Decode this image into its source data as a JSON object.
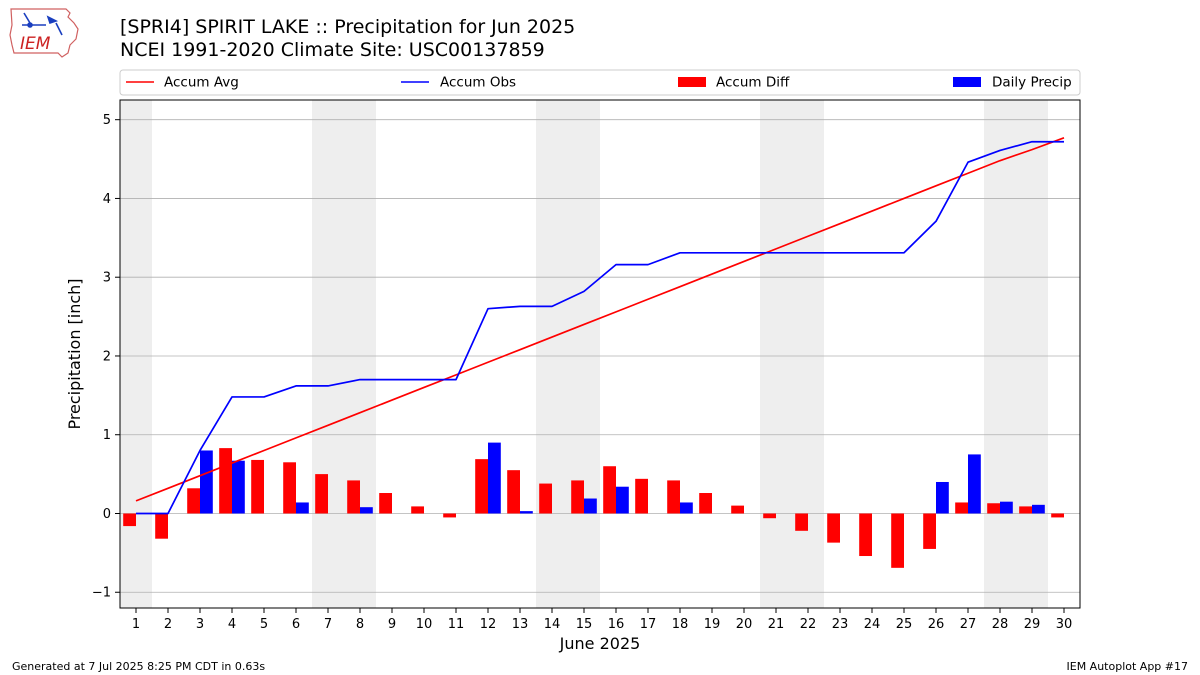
{
  "header": {
    "title_line1": "[SPRI4] SPIRIT LAKE :: Precipitation for Jun 2025",
    "title_line2": "NCEI 1991-2020 Climate Site: USC00137859",
    "logo_text": "IEM"
  },
  "footer": {
    "generated": "Generated at 7 Jul 2025 8:25 PM CDT in 0.63s",
    "app": "IEM Autoplot App #17"
  },
  "colors": {
    "avg": "#ff0000",
    "obs": "#0000ff",
    "diff": "#ff0000",
    "daily": "#0000ff",
    "weekend_shade": "#eeeeee",
    "grid": "#b0b0b0"
  },
  "chart_data": {
    "type": "bar",
    "xlabel": "June 2025",
    "ylabel": "Precipitation [inch]",
    "x": [
      1,
      2,
      3,
      4,
      5,
      6,
      7,
      8,
      9,
      10,
      11,
      12,
      13,
      14,
      15,
      16,
      17,
      18,
      19,
      20,
      21,
      22,
      23,
      24,
      25,
      26,
      27,
      28,
      29,
      30
    ],
    "xlim": [
      0.5,
      30.5
    ],
    "ylim": [
      -1.2,
      5.25
    ],
    "yticks": [
      -1,
      0,
      1,
      2,
      3,
      4,
      5
    ],
    "ytick_labels": [
      "−1",
      "0",
      "1",
      "2",
      "3",
      "4",
      "5"
    ],
    "grid": "horizontal",
    "legend_placement": "top",
    "shaded_ranges": [
      [
        0.5,
        1.5
      ],
      [
        6.5,
        8.5
      ],
      [
        13.5,
        15.5
      ],
      [
        20.5,
        22.5
      ],
      [
        27.5,
        29.5
      ]
    ],
    "series": [
      {
        "name": "Accum Avg",
        "kind": "line",
        "values": [
          0.16,
          0.32,
          0.48,
          0.64,
          0.8,
          0.96,
          1.12,
          1.28,
          1.44,
          1.6,
          1.76,
          1.92,
          2.08,
          2.24,
          2.4,
          2.56,
          2.72,
          2.88,
          3.04,
          3.2,
          3.36,
          3.52,
          3.68,
          3.84,
          4.0,
          4.16,
          4.32,
          4.48,
          4.62,
          4.77
        ]
      },
      {
        "name": "Accum Obs",
        "kind": "line",
        "values": [
          0.0,
          0.0,
          0.8,
          1.48,
          1.48,
          1.62,
          1.62,
          1.7,
          1.7,
          1.7,
          1.7,
          2.6,
          2.63,
          2.63,
          2.82,
          3.16,
          3.16,
          3.31,
          3.31,
          3.31,
          3.31,
          3.31,
          3.31,
          3.31,
          3.31,
          3.71,
          4.46,
          4.61,
          4.72,
          4.72
        ]
      },
      {
        "name": "Accum Diff",
        "kind": "bar",
        "values": [
          -0.16,
          -0.32,
          0.32,
          0.83,
          0.68,
          0.65,
          0.5,
          0.42,
          0.26,
          0.09,
          -0.05,
          0.69,
          0.55,
          0.38,
          0.42,
          0.6,
          0.44,
          0.42,
          0.26,
          0.1,
          -0.06,
          -0.22,
          -0.37,
          -0.54,
          -0.69,
          -0.45,
          0.14,
          0.13,
          0.09,
          -0.05
        ]
      },
      {
        "name": "Daily Precip",
        "kind": "bar",
        "values": [
          0,
          0,
          0.8,
          0.67,
          0,
          0.14,
          0,
          0.08,
          0,
          0,
          0,
          0.9,
          0.03,
          0,
          0.19,
          0.34,
          0,
          0.14,
          0,
          0,
          0,
          0,
          0,
          0,
          0,
          0.4,
          0.75,
          0.15,
          0.11,
          0
        ]
      }
    ]
  }
}
